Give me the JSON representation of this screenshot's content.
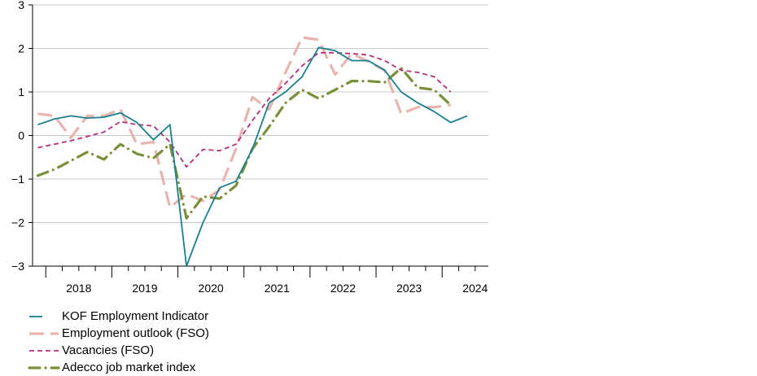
{
  "chart_data": {
    "type": "line",
    "title": "",
    "xlabel": "",
    "ylabel": "",
    "ylim": [
      -3,
      3
    ],
    "yticks": [
      -3,
      -2,
      -1,
      0,
      1,
      2,
      3
    ],
    "xlim": [
      2017.8,
      2024.7
    ],
    "xtick_labels": [
      "2018",
      "2019",
      "2020",
      "2021",
      "2022",
      "2023",
      "2024"
    ],
    "grid": "horizontal",
    "legend_position": "bottom-left",
    "series": [
      {
        "name": "KOF Employment Indicator",
        "color": "#1a7f8e",
        "style": "solid",
        "x": [
          2017.88,
          2018.13,
          2018.38,
          2018.63,
          2018.88,
          2019.13,
          2019.38,
          2019.63,
          2019.88,
          2020.13,
          2020.38,
          2020.63,
          2020.88,
          2021.13,
          2021.38,
          2021.63,
          2021.88,
          2022.13,
          2022.38,
          2022.63,
          2022.88,
          2023.13,
          2023.38,
          2023.63,
          2023.88,
          2024.13,
          2024.38
        ],
        "y": [
          0.25,
          0.38,
          0.45,
          0.4,
          0.42,
          0.52,
          0.3,
          -0.1,
          0.25,
          -3.0,
          -2.0,
          -1.2,
          -1.05,
          -0.3,
          0.75,
          1.0,
          1.35,
          2.02,
          1.95,
          1.72,
          1.72,
          1.5,
          1.0,
          0.75,
          0.55,
          0.3,
          0.45
        ]
      },
      {
        "name": "Employment outlook (FSO)",
        "color": "#e8b4b0",
        "style": "long-dash",
        "x": [
          2017.88,
          2018.13,
          2018.38,
          2018.63,
          2018.88,
          2019.13,
          2019.38,
          2019.63,
          2019.88,
          2020.13,
          2020.38,
          2020.63,
          2020.88,
          2021.13,
          2021.38,
          2021.63,
          2021.88,
          2022.13,
          2022.38,
          2022.63,
          2022.88,
          2023.13,
          2023.38,
          2023.63,
          2023.88,
          2024.13
        ],
        "y": [
          0.5,
          0.45,
          -0.05,
          0.45,
          0.45,
          0.6,
          -0.2,
          -0.15,
          -1.65,
          -1.35,
          -1.5,
          -1.25,
          -0.3,
          0.88,
          0.6,
          1.45,
          2.25,
          2.2,
          1.4,
          1.88,
          1.7,
          1.5,
          0.5,
          0.65,
          0.65,
          0.7
        ]
      },
      {
        "name": "Vacancies (FSO)",
        "color": "#b0307a",
        "style": "dash",
        "x": [
          2017.88,
          2018.13,
          2018.38,
          2018.63,
          2018.88,
          2019.13,
          2019.38,
          2019.63,
          2019.88,
          2020.13,
          2020.38,
          2020.63,
          2020.88,
          2021.13,
          2021.38,
          2021.63,
          2021.88,
          2022.13,
          2022.38,
          2022.63,
          2022.88,
          2023.13,
          2023.38,
          2023.63,
          2023.88,
          2024.13
        ],
        "y": [
          -0.28,
          -0.2,
          -0.12,
          -0.02,
          0.08,
          0.32,
          0.25,
          0.22,
          -0.15,
          -0.72,
          -0.32,
          -0.35,
          -0.2,
          0.35,
          0.85,
          1.2,
          1.6,
          1.9,
          1.9,
          1.88,
          1.85,
          1.72,
          1.5,
          1.45,
          1.35,
          1.0
        ]
      },
      {
        "name": "Adecco job market index",
        "color": "#7a8f3a",
        "style": "dash-dot",
        "x": [
          2017.88,
          2018.13,
          2018.38,
          2018.63,
          2018.88,
          2019.13,
          2019.38,
          2019.63,
          2019.88,
          2020.13,
          2020.38,
          2020.63,
          2020.88,
          2021.13,
          2021.38,
          2021.63,
          2021.88,
          2022.13,
          2022.38,
          2022.63,
          2022.88,
          2023.13,
          2023.38,
          2023.63,
          2023.88,
          2024.13
        ],
        "y": [
          -0.92,
          -0.78,
          -0.58,
          -0.38,
          -0.55,
          -0.2,
          -0.42,
          -0.52,
          -0.2,
          -1.9,
          -1.4,
          -1.45,
          -1.15,
          -0.3,
          0.2,
          0.75,
          1.05,
          0.85,
          1.05,
          1.25,
          1.25,
          1.22,
          1.55,
          1.1,
          1.05,
          0.7
        ]
      }
    ]
  }
}
